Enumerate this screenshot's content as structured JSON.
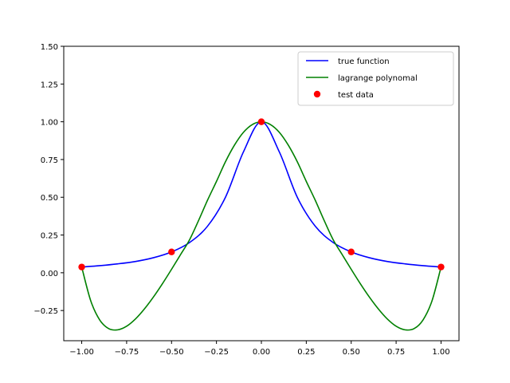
{
  "chart_data": {
    "type": "line",
    "title": "",
    "xlabel": "",
    "ylabel": "",
    "xlim": [
      -1.1,
      1.1
    ],
    "ylim": [
      -0.45,
      1.5
    ],
    "grid": false,
    "legend_position": "top-right",
    "xticks": [
      {
        "value": -1.0,
        "label": "−1.00"
      },
      {
        "value": -0.75,
        "label": "−0.75"
      },
      {
        "value": -0.5,
        "label": "−0.50"
      },
      {
        "value": -0.25,
        "label": "−0.25"
      },
      {
        "value": 0.0,
        "label": "0.00"
      },
      {
        "value": 0.25,
        "label": "0.25"
      },
      {
        "value": 0.5,
        "label": "0.50"
      },
      {
        "value": 0.75,
        "label": "0.75"
      },
      {
        "value": 1.0,
        "label": "1.00"
      }
    ],
    "yticks": [
      {
        "value": -0.25,
        "label": "−0.25"
      },
      {
        "value": 0.0,
        "label": "0.00"
      },
      {
        "value": 0.25,
        "label": "0.25"
      },
      {
        "value": 0.5,
        "label": "0.50"
      },
      {
        "value": 0.75,
        "label": "0.75"
      },
      {
        "value": 1.0,
        "label": "1.00"
      },
      {
        "value": 1.25,
        "label": "1.25"
      },
      {
        "value": 1.5,
        "label": "1.50"
      }
    ],
    "series": [
      {
        "name": "true function",
        "kind": "line",
        "color": "#0000ff",
        "x": [
          -1.0,
          -0.9,
          -0.8,
          -0.7,
          -0.6,
          -0.5,
          -0.4,
          -0.3,
          -0.2,
          -0.1,
          0.0,
          0.1,
          0.2,
          0.3,
          0.4,
          0.5,
          0.6,
          0.7,
          0.8,
          0.9,
          1.0
        ],
        "y": [
          0.038,
          0.047,
          0.059,
          0.075,
          0.1,
          0.138,
          0.2,
          0.308,
          0.5,
          0.8,
          1.0,
          0.8,
          0.5,
          0.308,
          0.2,
          0.138,
          0.1,
          0.075,
          0.059,
          0.047,
          0.038
        ]
      },
      {
        "name": "lagrange polynomal",
        "kind": "line",
        "color": "#008000",
        "x": [
          -1.0,
          -0.95,
          -0.9,
          -0.85,
          -0.8,
          -0.75,
          -0.7,
          -0.65,
          -0.6,
          -0.55,
          -0.5,
          -0.45,
          -0.4,
          -0.35,
          -0.3,
          -0.25,
          -0.2,
          -0.15,
          -0.1,
          -0.05,
          0.0,
          0.05,
          0.1,
          0.15,
          0.2,
          0.25,
          0.3,
          0.35,
          0.4,
          0.45,
          0.5,
          0.55,
          0.6,
          0.65,
          0.7,
          0.75,
          0.8,
          0.85,
          0.9,
          0.95,
          1.0
        ],
        "y": [
          0.038,
          -0.185,
          -0.312,
          -0.37,
          -0.378,
          -0.354,
          -0.305,
          -0.238,
          -0.159,
          -0.071,
          0.023,
          0.12,
          0.218,
          0.345,
          0.48,
          0.605,
          0.735,
          0.845,
          0.93,
          0.982,
          1.0,
          0.982,
          0.93,
          0.845,
          0.735,
          0.605,
          0.48,
          0.345,
          0.218,
          0.12,
          0.023,
          -0.071,
          -0.159,
          -0.238,
          -0.305,
          -0.354,
          -0.378,
          -0.37,
          -0.312,
          -0.185,
          0.038
        ]
      },
      {
        "name": "test data",
        "kind": "scatter",
        "color": "#ff0000",
        "x": [
          -1.0,
          -0.5,
          0.0,
          0.5,
          1.0
        ],
        "y": [
          0.038,
          0.138,
          1.0,
          0.138,
          0.038
        ]
      }
    ]
  }
}
